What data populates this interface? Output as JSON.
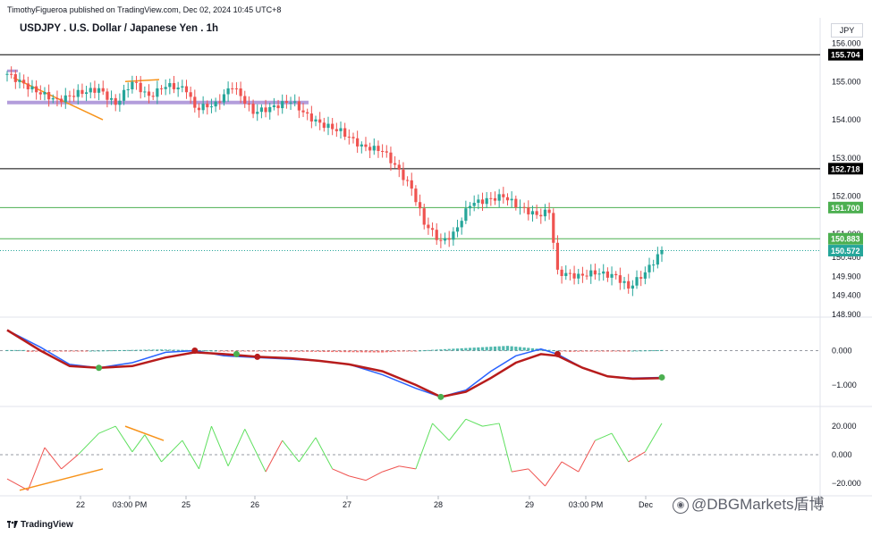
{
  "header": {
    "published": "TimothyFigueroa published on TradingView.com, Dec 02, 2024 10:45 UTC+8",
    "symbol_title": "USDJPY . U.S. Dollar / Japanese Yen . 1h",
    "currency": "JPY"
  },
  "footer": {
    "brand": "TradingView"
  },
  "watermark": {
    "text": "@DBGMarkets盾博"
  },
  "colors": {
    "up": "#26a69a",
    "down": "#ef5350",
    "hline": "#000000",
    "green_line": "#4caf50",
    "macd": "#2962ff",
    "signal": "#b71c1c",
    "osc_up": "#5ee05e",
    "osc_down": "#ef5350",
    "trend": "#f7931a",
    "zone": "#b39ddb"
  },
  "chart_data": [
    {
      "type": "candlestick",
      "title": "USDJPY . U.S. Dollar / Japanese Yen . 1h",
      "x_ticks": [
        "22",
        "03:00 PM",
        "25",
        "26",
        "27",
        "28",
        "29",
        "03:00 PM",
        "Dec"
      ],
      "y_ticks": [
        156.0,
        155.0,
        154.0,
        153.0,
        152.0,
        151.0,
        150.4,
        149.9,
        149.4,
        148.9
      ],
      "y_tick_labels": [
        "156.000",
        "155.000",
        "154.000",
        "153.000",
        "152.000",
        "151.000",
        "150.400",
        "149.900",
        "149.400",
        "148.900"
      ],
      "ylim": [
        148.9,
        156.2
      ],
      "horizontal_lines": [
        {
          "value": 155.704,
          "label": "155.704",
          "color": "#000000"
        },
        {
          "value": 152.718,
          "label": "152.718",
          "color": "#000000"
        },
        {
          "value": 151.7,
          "label": "151.700",
          "color": "#4caf50"
        },
        {
          "value": 150.883,
          "label": "150.883",
          "color": "#4caf50"
        },
        {
          "value": 150.572,
          "label": "150.572",
          "color": "#26a69a",
          "dotted": true
        }
      ],
      "close_path": [
        [
          0,
          155.2
        ],
        [
          6,
          154.8
        ],
        [
          12,
          154.5
        ],
        [
          17,
          154.7
        ],
        [
          22,
          154.8
        ],
        [
          26,
          154.4
        ],
        [
          30,
          155.0
        ],
        [
          34,
          154.6
        ],
        [
          38,
          154.9
        ],
        [
          43,
          154.8
        ],
        [
          45,
          154.3
        ],
        [
          50,
          154.4
        ],
        [
          54,
          154.9
        ],
        [
          59,
          154.2
        ],
        [
          63,
          154.3
        ],
        [
          68,
          154.5
        ],
        [
          72,
          154.1
        ],
        [
          75,
          153.9
        ],
        [
          80,
          153.7
        ],
        [
          85,
          153.3
        ],
        [
          90,
          153.2
        ],
        [
          93,
          152.8
        ],
        [
          97,
          152.2
        ],
        [
          100,
          151.3
        ],
        [
          104,
          150.8
        ],
        [
          107,
          151.0
        ],
        [
          111,
          151.8
        ],
        [
          115,
          151.9
        ],
        [
          119,
          152.0
        ],
        [
          123,
          151.7
        ],
        [
          127,
          151.5
        ],
        [
          130,
          151.6
        ],
        [
          132,
          150.0
        ],
        [
          137,
          149.9
        ],
        [
          141,
          150.0
        ],
        [
          146,
          149.9
        ],
        [
          149,
          149.6
        ],
        [
          153,
          150.0
        ],
        [
          157,
          150.572
        ]
      ]
    },
    {
      "type": "line",
      "y_ticks": [
        0.0,
        -1.0
      ],
      "y_tick_labels": [
        "0.000",
        "−1.000"
      ],
      "ylim": [
        -1.55,
        0.9
      ],
      "macd": [
        [
          0,
          0.6
        ],
        [
          8,
          0.1
        ],
        [
          15,
          -0.4
        ],
        [
          22,
          -0.5
        ],
        [
          30,
          -0.35
        ],
        [
          38,
          -0.05
        ],
        [
          45,
          0.0
        ],
        [
          52,
          -0.15
        ],
        [
          60,
          -0.2
        ],
        [
          68,
          -0.25
        ],
        [
          75,
          -0.3
        ],
        [
          82,
          -0.4
        ],
        [
          90,
          -0.7
        ],
        [
          98,
          -1.1
        ],
        [
          104,
          -1.35
        ],
        [
          110,
          -1.15
        ],
        [
          116,
          -0.6
        ],
        [
          122,
          -0.15
        ],
        [
          128,
          0.05
        ],
        [
          132,
          -0.1
        ],
        [
          138,
          -0.5
        ],
        [
          144,
          -0.75
        ],
        [
          150,
          -0.8
        ],
        [
          157,
          -0.78
        ]
      ],
      "signal": [
        [
          0,
          0.6
        ],
        [
          8,
          0.0
        ],
        [
          15,
          -0.45
        ],
        [
          22,
          -0.5
        ],
        [
          30,
          -0.45
        ],
        [
          38,
          -0.2
        ],
        [
          45,
          -0.05
        ],
        [
          52,
          -0.1
        ],
        [
          60,
          -0.18
        ],
        [
          68,
          -0.22
        ],
        [
          75,
          -0.3
        ],
        [
          82,
          -0.4
        ],
        [
          90,
          -0.6
        ],
        [
          98,
          -1.0
        ],
        [
          104,
          -1.35
        ],
        [
          110,
          -1.2
        ],
        [
          116,
          -0.8
        ],
        [
          122,
          -0.35
        ],
        [
          128,
          -0.1
        ],
        [
          132,
          -0.15
        ],
        [
          138,
          -0.5
        ],
        [
          144,
          -0.75
        ],
        [
          150,
          -0.82
        ],
        [
          157,
          -0.8
        ]
      ],
      "histogram_peaks": [
        [
          5,
          -0.1
        ],
        [
          20,
          0.0
        ],
        [
          37,
          0.1
        ],
        [
          58,
          -0.05
        ],
        [
          90,
          -0.15
        ],
        [
          120,
          0.4
        ],
        [
          135,
          -0.1
        ],
        [
          157,
          0.05
        ]
      ]
    },
    {
      "type": "line",
      "y_ticks": [
        20.0,
        0.0,
        -20.0
      ],
      "y_tick_labels": [
        "20.000",
        "0.000",
        "−20.000"
      ],
      "ylim": [
        -27,
        32
      ],
      "oscillator": [
        [
          0,
          -17
        ],
        [
          5,
          -25
        ],
        [
          9,
          5
        ],
        [
          13,
          -10
        ],
        [
          17,
          0
        ],
        [
          22,
          15
        ],
        [
          26,
          20
        ],
        [
          30,
          2
        ],
        [
          33,
          14
        ],
        [
          37,
          -5
        ],
        [
          42,
          10
        ],
        [
          46,
          -10
        ],
        [
          49,
          20
        ],
        [
          53,
          -8
        ],
        [
          57,
          18
        ],
        [
          62,
          -12
        ],
        [
          66,
          10
        ],
        [
          70,
          -5
        ],
        [
          74,
          12
        ],
        [
          78,
          -10
        ],
        [
          82,
          -15
        ],
        [
          86,
          -18
        ],
        [
          90,
          -12
        ],
        [
          94,
          -8
        ],
        [
          98,
          -10
        ],
        [
          102,
          22
        ],
        [
          106,
          10
        ],
        [
          110,
          25
        ],
        [
          114,
          20
        ],
        [
          118,
          22
        ],
        [
          121,
          -12
        ],
        [
          125,
          -10
        ],
        [
          129,
          -22
        ],
        [
          133,
          -5
        ],
        [
          137,
          -12
        ],
        [
          141,
          10
        ],
        [
          145,
          15
        ],
        [
          149,
          -5
        ],
        [
          153,
          2
        ],
        [
          157,
          22
        ]
      ]
    }
  ]
}
